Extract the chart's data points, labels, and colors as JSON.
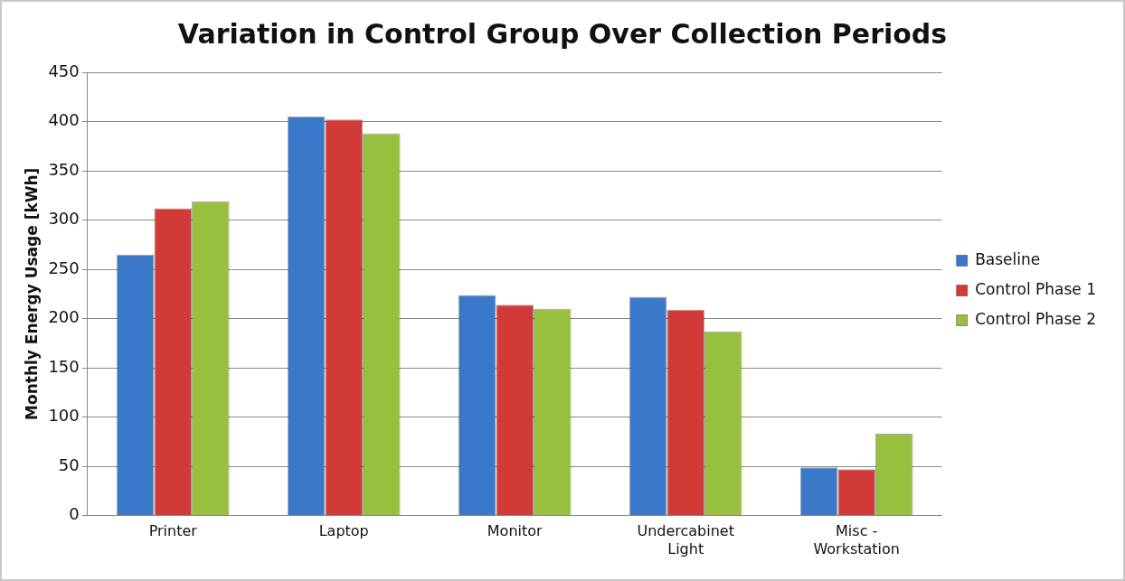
{
  "chart_data": {
    "type": "bar",
    "title": "Variation in Control Group Over Collection Periods",
    "ylabel": "Monthly Energy Usage [kWh]",
    "categories": [
      "Printer",
      "Laptop",
      "Monitor",
      "Undercabinet Light",
      "Misc - Workstation"
    ],
    "series": [
      {
        "name": "Baseline",
        "color": "#3a78c9",
        "values": [
          265,
          405,
          224,
          222,
          49
        ]
      },
      {
        "name": "Control Phase 1",
        "color": "#d23a37",
        "values": [
          312,
          402,
          214,
          209,
          47
        ]
      },
      {
        "name": "Control Phase 2",
        "color": "#98c03e",
        "values": [
          319,
          388,
          210,
          187,
          83
        ]
      }
    ],
    "ylim": [
      0,
      450
    ],
    "yticks": [
      0,
      50,
      100,
      150,
      200,
      250,
      300,
      350,
      400,
      450
    ],
    "grid": "y",
    "legend": "right"
  }
}
